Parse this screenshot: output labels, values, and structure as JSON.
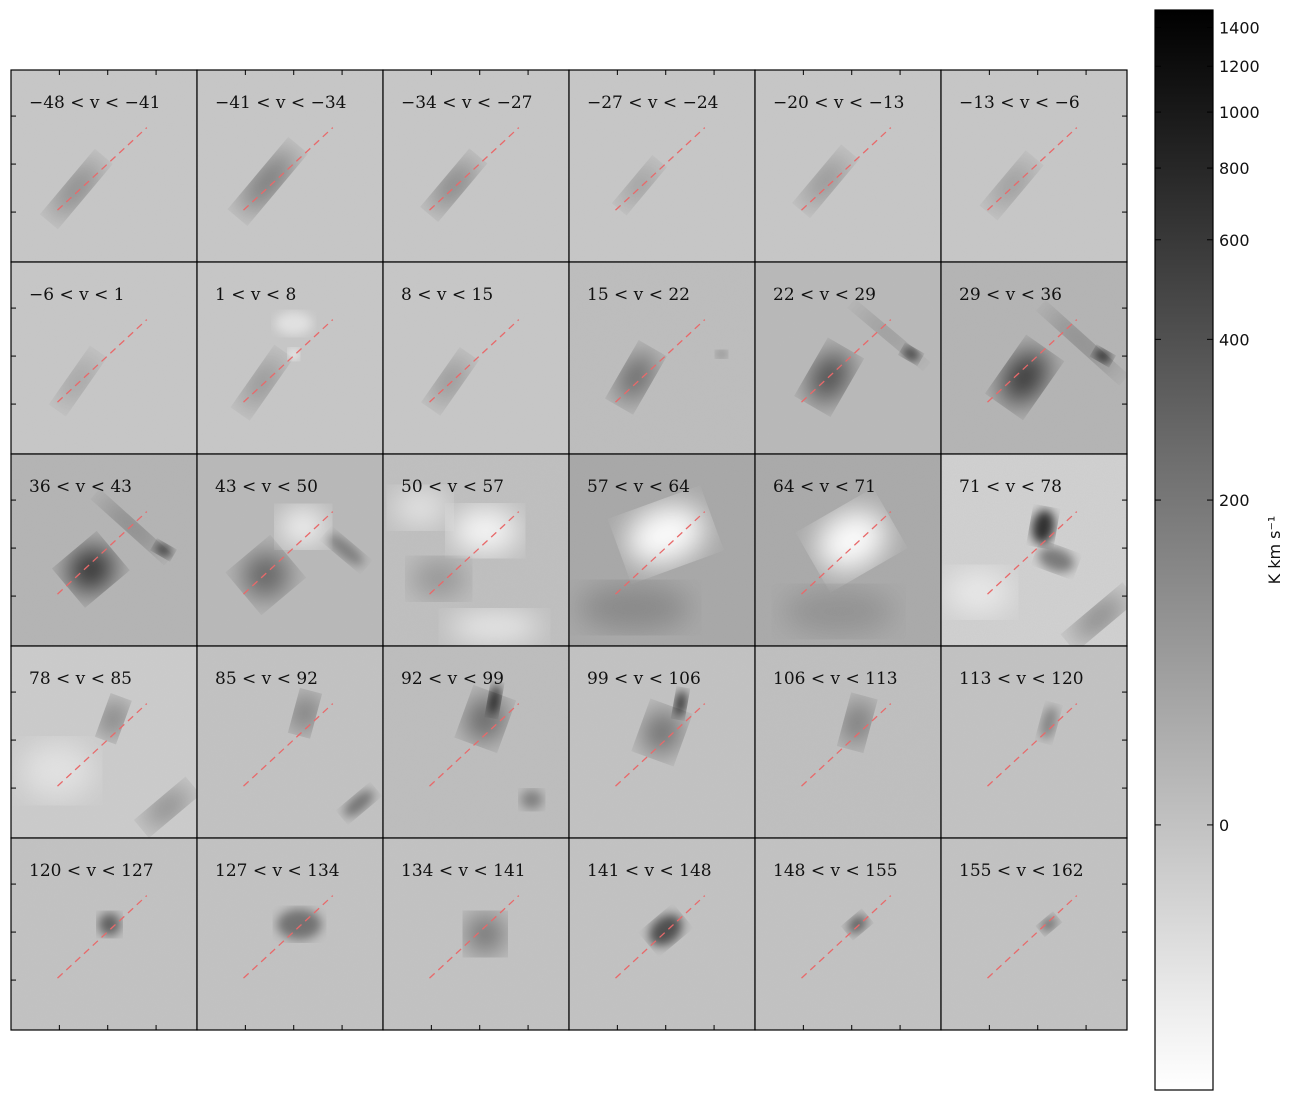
{
  "chart_data": {
    "type": "heatmap",
    "layout": {
      "rows": 5,
      "cols": 6
    },
    "panels": [
      {
        "label": "−48 < v < −41",
        "vmin": -48,
        "vmax": -41,
        "features": [
          {
            "kind": "blob",
            "cx": 0.35,
            "cy": 0.62,
            "rx": 0.19,
            "ry": 0.05,
            "angle": -50,
            "intensity": 0.55
          }
        ]
      },
      {
        "label": "−41 < v < −34",
        "vmin": -41,
        "vmax": -34,
        "features": [
          {
            "kind": "blob",
            "cx": 0.38,
            "cy": 0.58,
            "rx": 0.21,
            "ry": 0.055,
            "angle": -50,
            "intensity": 0.65
          }
        ]
      },
      {
        "label": "−34 < v < −27",
        "vmin": -34,
        "vmax": -27,
        "features": [
          {
            "kind": "blob",
            "cx": 0.38,
            "cy": 0.6,
            "rx": 0.17,
            "ry": 0.05,
            "angle": -50,
            "intensity": 0.6
          }
        ]
      },
      {
        "label": "−27 < v < −24",
        "vmin": -27,
        "vmax": -24,
        "features": [
          {
            "kind": "blob",
            "cx": 0.38,
            "cy": 0.6,
            "rx": 0.14,
            "ry": 0.04,
            "angle": -50,
            "intensity": 0.45
          }
        ]
      },
      {
        "label": "−20 < v < −13",
        "vmin": -20,
        "vmax": -13,
        "features": [
          {
            "kind": "blob",
            "cx": 0.38,
            "cy": 0.58,
            "rx": 0.17,
            "ry": 0.05,
            "angle": -50,
            "intensity": 0.45
          }
        ]
      },
      {
        "label": "−13 < v < −6",
        "vmin": -13,
        "vmax": -6,
        "features": [
          {
            "kind": "blob",
            "cx": 0.38,
            "cy": 0.6,
            "rx": 0.16,
            "ry": 0.05,
            "angle": -50,
            "intensity": 0.4
          }
        ]
      },
      {
        "label": "−6 < v < 1",
        "vmin": -6,
        "vmax": 1,
        "features": [
          {
            "kind": "blob",
            "cx": 0.36,
            "cy": 0.62,
            "rx": 0.16,
            "ry": 0.045,
            "angle": -55,
            "intensity": 0.35
          }
        ]
      },
      {
        "label": "1 < v < 8",
        "vmin": 1,
        "vmax": 8,
        "features": [
          {
            "kind": "blob",
            "cx": 0.35,
            "cy": 0.63,
            "rx": 0.17,
            "ry": 0.05,
            "angle": -55,
            "intensity": 0.45
          },
          {
            "kind": "bright",
            "cx": 0.52,
            "cy": 0.32,
            "rx": 0.1,
            "ry": 0.06,
            "angle": 0,
            "intensity": 0.5
          },
          {
            "kind": "bright",
            "cx": 0.52,
            "cy": 0.48,
            "rx": 0.03,
            "ry": 0.03,
            "angle": 0,
            "intensity": 0.9
          }
        ]
      },
      {
        "label": "8 < v < 15",
        "vmin": 8,
        "vmax": 15,
        "features": [
          {
            "kind": "blob",
            "cx": 0.36,
            "cy": 0.62,
            "rx": 0.15,
            "ry": 0.05,
            "angle": -55,
            "intensity": 0.45
          }
        ]
      },
      {
        "label": "15 < v < 22",
        "vmin": 15,
        "vmax": 22,
        "features": [
          {
            "kind": "blob",
            "cx": 0.36,
            "cy": 0.6,
            "rx": 0.15,
            "ry": 0.07,
            "angle": -60,
            "intensity": 0.65
          },
          {
            "kind": "blob",
            "cx": 0.82,
            "cy": 0.48,
            "rx": 0.03,
            "ry": 0.02,
            "angle": 0,
            "intensity": 0.4
          }
        ]
      },
      {
        "label": "22 < v < 29",
        "vmin": 22,
        "vmax": 29,
        "features": [
          {
            "kind": "blob",
            "cx": 0.4,
            "cy": 0.6,
            "rx": 0.15,
            "ry": 0.09,
            "angle": -60,
            "intensity": 0.75
          },
          {
            "kind": "blob",
            "cx": 0.72,
            "cy": 0.38,
            "rx": 0.22,
            "ry": 0.025,
            "angle": 40,
            "intensity": 0.5
          },
          {
            "kind": "blob",
            "cx": 0.84,
            "cy": 0.48,
            "rx": 0.05,
            "ry": 0.03,
            "angle": 30,
            "intensity": 0.75
          }
        ]
      },
      {
        "label": "29 < v < 36",
        "vmin": 29,
        "vmax": 36,
        "features": [
          {
            "kind": "blob",
            "cx": 0.45,
            "cy": 0.6,
            "rx": 0.16,
            "ry": 0.1,
            "angle": -55,
            "intensity": 0.85
          },
          {
            "kind": "blob",
            "cx": 0.76,
            "cy": 0.42,
            "rx": 0.25,
            "ry": 0.03,
            "angle": 42,
            "intensity": 0.6
          },
          {
            "kind": "blob",
            "cx": 0.87,
            "cy": 0.49,
            "rx": 0.05,
            "ry": 0.03,
            "angle": 30,
            "intensity": 0.85
          }
        ]
      },
      {
        "label": "36 < v < 43",
        "vmin": 36,
        "vmax": 43,
        "features": [
          {
            "kind": "blob",
            "cx": 0.43,
            "cy": 0.6,
            "rx": 0.13,
            "ry": 0.11,
            "angle": -40,
            "intensity": 0.9
          },
          {
            "kind": "blob",
            "cx": 0.65,
            "cy": 0.38,
            "rx": 0.22,
            "ry": 0.03,
            "angle": 42,
            "intensity": 0.65
          },
          {
            "kind": "blob",
            "cx": 0.82,
            "cy": 0.5,
            "rx": 0.05,
            "ry": 0.03,
            "angle": 30,
            "intensity": 0.75
          }
        ]
      },
      {
        "label": "43 < v < 50",
        "vmin": 43,
        "vmax": 50,
        "features": [
          {
            "kind": "blob",
            "cx": 0.37,
            "cy": 0.63,
            "rx": 0.13,
            "ry": 0.12,
            "angle": -40,
            "intensity": 0.55
          },
          {
            "kind": "bright",
            "cx": 0.57,
            "cy": 0.38,
            "rx": 0.13,
            "ry": 0.1,
            "angle": 0,
            "intensity": 0.9
          },
          {
            "kind": "blob",
            "cx": 0.8,
            "cy": 0.5,
            "rx": 0.12,
            "ry": 0.04,
            "angle": 40,
            "intensity": 0.35
          }
        ]
      },
      {
        "label": "50 < v < 57",
        "vmin": 50,
        "vmax": 57,
        "features": [
          {
            "kind": "bright",
            "cx": 0.55,
            "cy": 0.4,
            "rx": 0.18,
            "ry": 0.12,
            "angle": 0,
            "intensity": 0.9
          },
          {
            "kind": "bright",
            "cx": 0.2,
            "cy": 0.28,
            "rx": 0.15,
            "ry": 0.1,
            "angle": 0,
            "intensity": 0.6
          },
          {
            "kind": "bright",
            "cx": 0.6,
            "cy": 0.9,
            "rx": 0.25,
            "ry": 0.08,
            "angle": 0,
            "intensity": 0.7
          },
          {
            "kind": "blob",
            "cx": 0.3,
            "cy": 0.65,
            "rx": 0.15,
            "ry": 0.1,
            "angle": 0,
            "intensity": 0.25
          }
        ]
      },
      {
        "label": "57 < v < 64",
        "vmin": 57,
        "vmax": 64,
        "features": [
          {
            "kind": "bright",
            "cx": 0.52,
            "cy": 0.42,
            "rx": 0.22,
            "ry": 0.15,
            "angle": -20,
            "intensity": 1.0
          },
          {
            "kind": "blob",
            "cx": 0.35,
            "cy": 0.8,
            "rx": 0.3,
            "ry": 0.12,
            "angle": 0,
            "intensity": 0.2
          }
        ]
      },
      {
        "label": "64 < v < 71",
        "vmin": 64,
        "vmax": 71,
        "features": [
          {
            "kind": "bright",
            "cx": 0.52,
            "cy": 0.45,
            "rx": 0.2,
            "ry": 0.15,
            "angle": -30,
            "intensity": 1.0
          },
          {
            "kind": "blob",
            "cx": 0.45,
            "cy": 0.82,
            "rx": 0.3,
            "ry": 0.12,
            "angle": 0,
            "intensity": 0.15
          }
        ]
      },
      {
        "label": "71 < v < 78",
        "vmin": 71,
        "vmax": 78,
        "features": [
          {
            "kind": "blob",
            "cx": 0.55,
            "cy": 0.38,
            "rx": 0.06,
            "ry": 0.09,
            "angle": 10,
            "intensity": 0.85
          },
          {
            "kind": "blob",
            "cx": 0.62,
            "cy": 0.55,
            "rx": 0.1,
            "ry": 0.06,
            "angle": 20,
            "intensity": 0.45
          },
          {
            "kind": "blob",
            "cx": 0.85,
            "cy": 0.85,
            "rx": 0.18,
            "ry": 0.05,
            "angle": -40,
            "intensity": 0.6
          },
          {
            "kind": "bright",
            "cx": 0.2,
            "cy": 0.72,
            "rx": 0.18,
            "ry": 0.12,
            "angle": 0,
            "intensity": 0.55
          }
        ]
      },
      {
        "label": "78 < v < 85",
        "vmin": 78,
        "vmax": 85,
        "features": [
          {
            "kind": "blob",
            "cx": 0.55,
            "cy": 0.38,
            "rx": 0.05,
            "ry": 0.1,
            "angle": 20,
            "intensity": 0.8
          },
          {
            "kind": "blob",
            "cx": 0.84,
            "cy": 0.84,
            "rx": 0.15,
            "ry": 0.05,
            "angle": -40,
            "intensity": 0.55
          },
          {
            "kind": "bright",
            "cx": 0.25,
            "cy": 0.65,
            "rx": 0.2,
            "ry": 0.15,
            "angle": 0,
            "intensity": 0.45
          }
        ]
      },
      {
        "label": "85 < v < 92",
        "vmin": 85,
        "vmax": 92,
        "features": [
          {
            "kind": "blob",
            "cx": 0.58,
            "cy": 0.35,
            "rx": 0.05,
            "ry": 0.1,
            "angle": 15,
            "intensity": 0.8
          },
          {
            "kind": "blob",
            "cx": 0.87,
            "cy": 0.82,
            "rx": 0.1,
            "ry": 0.04,
            "angle": -40,
            "intensity": 0.45
          }
        ]
      },
      {
        "label": "92 < v < 99",
        "vmin": 92,
        "vmax": 99,
        "features": [
          {
            "kind": "blob",
            "cx": 0.55,
            "cy": 0.38,
            "rx": 0.1,
            "ry": 0.12,
            "angle": 20,
            "intensity": 0.6
          },
          {
            "kind": "blob",
            "cx": 0.6,
            "cy": 0.28,
            "rx": 0.03,
            "ry": 0.08,
            "angle": 10,
            "intensity": 0.85
          },
          {
            "kind": "blob",
            "cx": 0.8,
            "cy": 0.8,
            "rx": 0.06,
            "ry": 0.05,
            "angle": 0,
            "intensity": 0.35
          }
        ]
      },
      {
        "label": "99 < v < 106",
        "vmin": 99,
        "vmax": 106,
        "features": [
          {
            "kind": "blob",
            "cx": 0.5,
            "cy": 0.45,
            "rx": 0.1,
            "ry": 0.12,
            "angle": 20,
            "intensity": 0.55
          },
          {
            "kind": "blob",
            "cx": 0.6,
            "cy": 0.3,
            "rx": 0.03,
            "ry": 0.07,
            "angle": 10,
            "intensity": 0.85
          }
        ]
      },
      {
        "label": "106 < v < 113",
        "vmin": 106,
        "vmax": 113,
        "features": [
          {
            "kind": "blob",
            "cx": 0.55,
            "cy": 0.4,
            "rx": 0.06,
            "ry": 0.12,
            "angle": 15,
            "intensity": 0.65
          }
        ]
      },
      {
        "label": "113 < v < 120",
        "vmin": 113,
        "vmax": 120,
        "features": [
          {
            "kind": "blob",
            "cx": 0.58,
            "cy": 0.4,
            "rx": 0.04,
            "ry": 0.09,
            "angle": 15,
            "intensity": 0.35
          }
        ]
      },
      {
        "label": "120 < v < 127",
        "vmin": 120,
        "vmax": 127,
        "features": [
          {
            "kind": "blob",
            "cx": 0.53,
            "cy": 0.45,
            "rx": 0.06,
            "ry": 0.06,
            "angle": 0,
            "intensity": 0.55
          }
        ]
      },
      {
        "label": "127 < v < 134",
        "vmin": 127,
        "vmax": 134,
        "features": [
          {
            "kind": "blob",
            "cx": 0.55,
            "cy": 0.45,
            "rx": 0.12,
            "ry": 0.08,
            "angle": 0,
            "intensity": 0.45
          }
        ]
      },
      {
        "label": "134 < v < 141",
        "vmin": 134,
        "vmax": 141,
        "features": [
          {
            "kind": "blob",
            "cx": 0.55,
            "cy": 0.5,
            "rx": 0.1,
            "ry": 0.1,
            "angle": 0,
            "intensity": 0.55
          }
        ]
      },
      {
        "label": "141 < v < 148",
        "vmin": 141,
        "vmax": 148,
        "features": [
          {
            "kind": "blob",
            "cx": 0.52,
            "cy": 0.48,
            "rx": 0.1,
            "ry": 0.07,
            "angle": -40,
            "intensity": 0.65
          }
        ]
      },
      {
        "label": "148 < v < 155",
        "vmin": 148,
        "vmax": 155,
        "features": [
          {
            "kind": "blob",
            "cx": 0.55,
            "cy": 0.45,
            "rx": 0.06,
            "ry": 0.04,
            "angle": -40,
            "intensity": 0.55
          }
        ]
      },
      {
        "label": "155 < v < 162",
        "vmin": 155,
        "vmax": 162,
        "features": [
          {
            "kind": "blob",
            "cx": 0.58,
            "cy": 0.45,
            "rx": 0.05,
            "ry": 0.03,
            "angle": -40,
            "intensity": 0.5
          }
        ]
      }
    ],
    "panel_backgrounds": [
      0.78,
      0.78,
      0.78,
      0.78,
      0.78,
      0.78,
      0.78,
      0.78,
      0.78,
      0.74,
      0.72,
      0.7,
      0.7,
      0.72,
      0.75,
      0.65,
      0.66,
      0.82,
      0.8,
      0.76,
      0.74,
      0.76,
      0.75,
      0.76,
      0.76,
      0.76,
      0.76,
      0.76,
      0.76,
      0.76
    ],
    "guide_line": {
      "color": "#e8696a",
      "x_from": 0.25,
      "y_from": 0.73,
      "x_to": 0.73,
      "y_to": 0.3,
      "style": "dashed"
    },
    "colorbar": {
      "label": "K km s⁻¹",
      "ticks": [
        {
          "label": "1400",
          "value": 1400
        },
        {
          "label": "1200",
          "value": 1200
        },
        {
          "label": "1000",
          "value": 1000
        },
        {
          "label": "800",
          "value": 800
        },
        {
          "label": "600",
          "value": 600
        },
        {
          "label": "400",
          "value": 400
        },
        {
          "label": "200",
          "value": 200
        },
        {
          "label": "0",
          "value": 0
        }
      ],
      "vmin": -150,
      "vmax": 1500,
      "scale": "asinh",
      "cmap": "gray_r"
    }
  }
}
